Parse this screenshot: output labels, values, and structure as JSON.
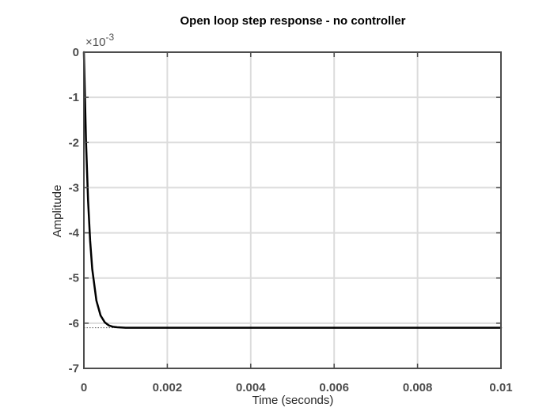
{
  "chart_data": {
    "type": "line",
    "title": "Open loop step response - no controller",
    "xlabel": "Time (seconds)",
    "ylabel": "Amplitude",
    "y_exponent_base": "×10",
    "y_exponent_power": "-3",
    "xlim": [
      0,
      0.01
    ],
    "ylim": [
      -7,
      0
    ],
    "x_ticks": [
      0,
      0.002,
      0.004,
      0.006,
      0.008,
      0.01
    ],
    "x_tick_labels": [
      "0",
      "0.002",
      "0.004",
      "0.006",
      "0.008",
      "0.01"
    ],
    "y_ticks": [
      0,
      -1,
      -2,
      -3,
      -4,
      -5,
      -6,
      -7
    ],
    "y_tick_labels": [
      "0",
      "-1",
      "-2",
      "-3",
      "-4",
      "-5",
      "-6",
      "-7"
    ],
    "grid": true,
    "series": [
      {
        "color": "#000000",
        "x": [
          0,
          5e-05,
          0.0001,
          0.00015,
          0.0002,
          0.0003,
          0.0004,
          0.0005,
          0.0006,
          0.0007,
          0.0008,
          0.001,
          0.0012,
          0.0015,
          0.002,
          0.004,
          0.006,
          0.008,
          0.01
        ],
        "y": [
          0,
          -1.95,
          -3.28,
          -4.18,
          -4.8,
          -5.5,
          -5.83,
          -5.98,
          -6.05,
          -6.08,
          -6.09,
          -6.1,
          -6.1,
          -6.1,
          -6.1,
          -6.1,
          -6.1,
          -6.1,
          -6.1
        ]
      }
    ],
    "steady_state": {
      "value": -6.1,
      "x_end": 0.0008,
      "color": "#555555",
      "style": "dotted"
    }
  }
}
